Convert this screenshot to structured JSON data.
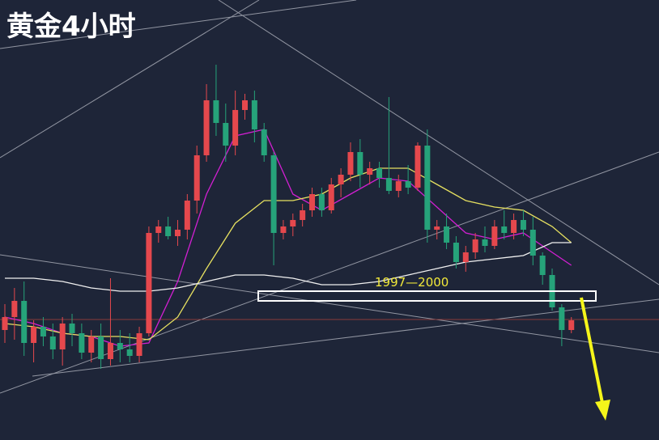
{
  "chart_data": {
    "type": "candlestick",
    "title": "黄金4小时",
    "annotation": "1997—2000",
    "ylim": [
      1954,
      2090
    ],
    "up_color": "#e5484d",
    "down_color": "#26a37a",
    "ohlc": [
      [
        1988,
        1996,
        1984,
        1992
      ],
      [
        1992,
        2001,
        1985,
        1997
      ],
      [
        1997,
        2003,
        1980,
        1984
      ],
      [
        1984,
        1991,
        1978,
        1989
      ],
      [
        1989,
        1992,
        1983,
        1986
      ],
      [
        1986,
        1990,
        1979,
        1982
      ],
      [
        1982,
        1992,
        1977,
        1990
      ],
      [
        1990,
        1993,
        1983,
        1987
      ],
      [
        1987,
        1990,
        1979,
        1981
      ],
      [
        1981,
        1988,
        1978,
        1986
      ],
      [
        1986,
        1990,
        1976,
        1979
      ],
      [
        1979,
        2004,
        1977,
        1984
      ],
      [
        1984,
        1988,
        1978,
        1982
      ],
      [
        1982,
        1987,
        1978,
        1980
      ],
      [
        1980,
        1989,
        1978,
        1987
      ],
      [
        1987,
        2020,
        1986,
        2018
      ],
      [
        2018,
        2022,
        2015,
        2020
      ],
      [
        2020,
        2023,
        2016,
        2017
      ],
      [
        2017,
        2022,
        2014,
        2019
      ],
      [
        2019,
        2030,
        2016,
        2028
      ],
      [
        2028,
        2045,
        2024,
        2042
      ],
      [
        2042,
        2064,
        2040,
        2059
      ],
      [
        2059,
        2070,
        2048,
        2052
      ],
      [
        2052,
        2058,
        2040,
        2045
      ],
      [
        2045,
        2062,
        2042,
        2056
      ],
      [
        2056,
        2061,
        2053,
        2059
      ],
      [
        2059,
        2062,
        2046,
        2050
      ],
      [
        2050,
        2052,
        2040,
        2042
      ],
      [
        2042,
        2043,
        2008,
        2018
      ],
      [
        2018,
        2022,
        2016,
        2020
      ],
      [
        2020,
        2024,
        2017,
        2022
      ],
      [
        2022,
        2027,
        2020,
        2025
      ],
      [
        2025,
        2032,
        2023,
        2030
      ],
      [
        2030,
        2032,
        2023,
        2025
      ],
      [
        2025,
        2035,
        2024,
        2033
      ],
      [
        2033,
        2038,
        2029,
        2036
      ],
      [
        2036,
        2046,
        2034,
        2043
      ],
      [
        2043,
        2047,
        2032,
        2036
      ],
      [
        2036,
        2040,
        2033,
        2038
      ],
      [
        2038,
        2040,
        2032,
        2035
      ],
      [
        2035,
        2060,
        2030,
        2031
      ],
      [
        2031,
        2036,
        2029,
        2034
      ],
      [
        2034,
        2039,
        2030,
        2032
      ],
      [
        2032,
        2046,
        2031,
        2045
      ],
      [
        2045,
        2050,
        2015,
        2019
      ],
      [
        2019,
        2022,
        2016,
        2020
      ],
      [
        2020,
        2024,
        2013,
        2015
      ],
      [
        2015,
        2017,
        2007,
        2009
      ],
      [
        2009,
        2014,
        2006,
        2012
      ],
      [
        2012,
        2018,
        2010,
        2016
      ],
      [
        2016,
        2020,
        2012,
        2014
      ],
      [
        2014,
        2022,
        2013,
        2020
      ],
      [
        2020,
        2025,
        2016,
        2018
      ],
      [
        2018,
        2024,
        2016,
        2022
      ],
      [
        2022,
        2025,
        2017,
        2019
      ],
      [
        2019,
        2023,
        2008,
        2011
      ],
      [
        2011,
        2012,
        2002,
        2005
      ],
      [
        2005,
        2007,
        1994,
        1995
      ],
      [
        1995,
        1996,
        1983,
        1988
      ],
      [
        1988,
        1992,
        1987,
        1991
      ]
    ],
    "series": [
      {
        "color": "#d21fd2",
        "x": [
          0,
          3,
          6,
          9,
          12,
          15,
          18,
          21,
          24,
          27,
          30,
          33,
          36,
          39,
          42,
          45,
          48,
          51,
          54,
          57,
          59
        ],
        "values": [
          1992,
          1990,
          1987,
          1986,
          1983,
          1984,
          2003,
          2030,
          2048,
          2050,
          2030,
          2025,
          2030,
          2035,
          2034,
          2026,
          2018,
          2016,
          2018,
          2012,
          2008
        ]
      },
      {
        "color": "#e6e060",
        "x": [
          0,
          3,
          6,
          9,
          12,
          15,
          18,
          21,
          24,
          27,
          30,
          33,
          36,
          39,
          42,
          45,
          48,
          51,
          54,
          57,
          59
        ],
        "values": [
          1990,
          1989,
          1987,
          1986,
          1986,
          1985,
          1992,
          2007,
          2021,
          2028,
          2028,
          2030,
          2035,
          2038,
          2038,
          2033,
          2028,
          2026,
          2025,
          2020,
          2015
        ]
      },
      {
        "color": "#f0f0f0",
        "x": [
          0,
          3,
          6,
          9,
          12,
          15,
          18,
          21,
          24,
          27,
          30,
          33,
          36,
          39,
          42,
          45,
          48,
          51,
          54,
          57,
          59
        ],
        "values": [
          2004,
          2004,
          2003,
          2001,
          2000,
          2000,
          2001,
          2003,
          2005,
          2005,
          2004,
          2002,
          2002,
          2003,
          2005,
          2007,
          2009,
          2010,
          2011,
          2015,
          2015
        ]
      }
    ]
  }
}
